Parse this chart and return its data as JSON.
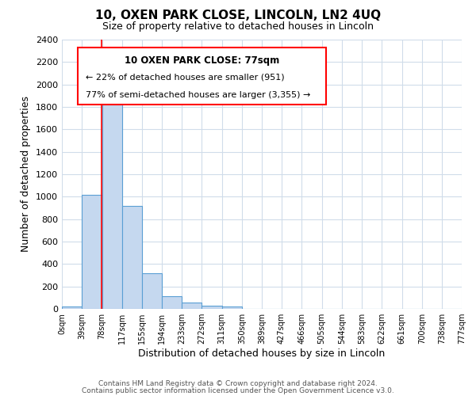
{
  "title": "10, OXEN PARK CLOSE, LINCOLN, LN2 4UQ",
  "subtitle": "Size of property relative to detached houses in Lincoln",
  "xlabel": "Distribution of detached houses by size in Lincoln",
  "ylabel": "Number of detached properties",
  "bar_edges": [
    0,
    39,
    78,
    117,
    155,
    194,
    233,
    272,
    311,
    350,
    389,
    427,
    466,
    505,
    544,
    583,
    622,
    661,
    700,
    738,
    777
  ],
  "bar_heights": [
    20,
    1020,
    1900,
    920,
    320,
    110,
    55,
    30,
    20,
    0,
    0,
    0,
    0,
    0,
    0,
    0,
    0,
    0,
    0,
    0
  ],
  "bar_color": "#c5d8ef",
  "bar_edge_color": "#5a9fd4",
  "red_line_x": 77,
  "ylim": [
    0,
    2400
  ],
  "yticks": [
    0,
    200,
    400,
    600,
    800,
    1000,
    1200,
    1400,
    1600,
    1800,
    2000,
    2200,
    2400
  ],
  "xtick_labels": [
    "0sqm",
    "39sqm",
    "78sqm",
    "117sqm",
    "155sqm",
    "194sqm",
    "233sqm",
    "272sqm",
    "311sqm",
    "350sqm",
    "389sqm",
    "427sqm",
    "466sqm",
    "505sqm",
    "544sqm",
    "583sqm",
    "622sqm",
    "661sqm",
    "700sqm",
    "738sqm",
    "777sqm"
  ],
  "annotation_box_text_line1": "10 OXEN PARK CLOSE: 77sqm",
  "annotation_box_text_line2": "← 22% of detached houses are smaller (951)",
  "annotation_box_text_line3": "77% of semi-detached houses are larger (3,355) →",
  "footer_line1": "Contains HM Land Registry data © Crown copyright and database right 2024.",
  "footer_line2": "Contains public sector information licensed under the Open Government Licence v3.0.",
  "background_color": "#ffffff",
  "grid_color": "#d0dcea"
}
